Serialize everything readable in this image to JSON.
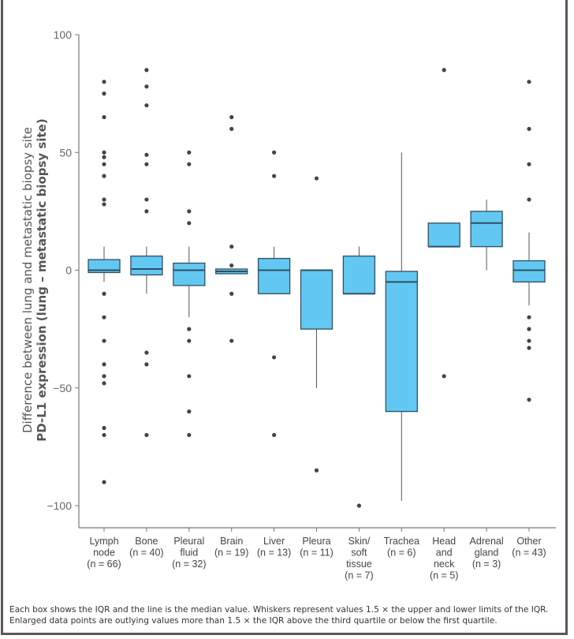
{
  "chart_data": {
    "type": "box",
    "ylabel_line1": "Difference between lung and metastatic biopsy site",
    "ylabel_line2": "PD-L1 expression (lung – metastatic biopsy site)",
    "ylim": [
      -100,
      100
    ],
    "yticks": [
      100,
      50,
      0,
      -50,
      -100
    ],
    "ytick_labels": [
      "100",
      "50",
      "0",
      "−50",
      "−100"
    ],
    "box_color": "#62c8f2",
    "categories": [
      {
        "label": [
          "Lymph",
          "node",
          "(n = 66)"
        ],
        "q1": -1,
        "median": 0,
        "q3": 4.5,
        "whisker_low": -5,
        "whisker_high": 10,
        "outliers": [
          80,
          75,
          65,
          50,
          48,
          45,
          40,
          30,
          28,
          -10,
          -20,
          -30,
          -40,
          -45,
          -48,
          -67,
          -70,
          -90
        ]
      },
      {
        "label": [
          "Bone",
          "(n = 40)"
        ],
        "q1": -2,
        "median": 0.5,
        "q3": 6,
        "whisker_low": -10,
        "whisker_high": 10,
        "outliers": [
          85,
          78,
          70,
          49,
          45,
          30,
          25,
          -35,
          -40,
          -70
        ]
      },
      {
        "label": [
          "Pleural",
          "fluid",
          "(n = 32)"
        ],
        "q1": -6.5,
        "median": 0,
        "q3": 3,
        "whisker_low": -20,
        "whisker_high": 10,
        "outliers": [
          50,
          45,
          25,
          20,
          -25,
          -30,
          -45,
          -60,
          -70
        ]
      },
      {
        "label": [
          "Brain",
          "(n = 19)"
        ],
        "q1": -1.5,
        "median": -0.5,
        "q3": 0.5,
        "whisker_low": -1.5,
        "whisker_high": 0.5,
        "outliers": [
          65,
          60,
          10,
          2,
          -10,
          -30
        ]
      },
      {
        "label": [
          "Liver",
          "(n = 13)"
        ],
        "q1": -10,
        "median": 0,
        "q3": 5,
        "whisker_low": -10,
        "whisker_high": 10,
        "outliers": [
          50,
          40,
          -37,
          -70
        ]
      },
      {
        "label": [
          "Pleura",
          "(n = 11)"
        ],
        "q1": -25,
        "median": 0,
        "q3": 0,
        "whisker_low": -50,
        "whisker_high": 0,
        "outliers": [
          39,
          -85
        ]
      },
      {
        "label": [
          "Skin/",
          "soft",
          "tissue",
          "(n = 7)"
        ],
        "q1": -10,
        "median": -10,
        "q3": 6,
        "whisker_low": -10,
        "whisker_high": 10,
        "outliers": [
          -100
        ]
      },
      {
        "label": [
          "Trachea",
          "(n = 6)"
        ],
        "q1": -60,
        "median": -5,
        "q3": -0.5,
        "whisker_low": -98,
        "whisker_high": 50,
        "outliers": []
      },
      {
        "label": [
          "Head",
          "and",
          "neck",
          "(n = 5)"
        ],
        "q1": 10,
        "median": 10,
        "q3": 20,
        "whisker_low": 10,
        "whisker_high": 20,
        "outliers": [
          85,
          -45
        ]
      },
      {
        "label": [
          "Adrenal",
          "gland",
          "(n = 3)"
        ],
        "q1": 10,
        "median": 20,
        "q3": 25,
        "whisker_low": 0,
        "whisker_high": 30,
        "outliers": []
      },
      {
        "label": [
          "Other",
          "(n = 43)"
        ],
        "q1": -5,
        "median": 0,
        "q3": 4,
        "whisker_low": -15,
        "whisker_high": 16,
        "outliers": [
          80,
          60,
          45,
          30,
          -20,
          -25,
          -30,
          -33,
          -55
        ]
      }
    ]
  },
  "footnote": {
    "line1": "Each box shows the IQR and the line is the median value. Whiskers represent values 1.5 × the upper and lower limits of the IQR.",
    "line2": "Enlarged data points are outlying values more than 1.5 × the IQR above the third quartile or below the first quartile."
  }
}
